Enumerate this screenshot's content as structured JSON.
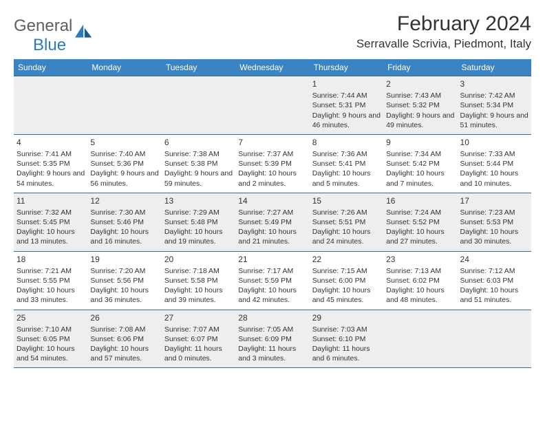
{
  "logo": {
    "word1": "General",
    "word2": "Blue"
  },
  "title": "February 2024",
  "location": "Serravalle Scrivia, Piedmont, Italy",
  "colors": {
    "header_bg": "#3b84c4",
    "border": "#2f6aa0",
    "shade": "#eeeeee",
    "text": "#333333",
    "logo_gray": "#5f5f5f",
    "logo_blue": "#2b7bbf"
  },
  "daysOfWeek": [
    "Sunday",
    "Monday",
    "Tuesday",
    "Wednesday",
    "Thursday",
    "Friday",
    "Saturday"
  ],
  "weeks": [
    [
      {
        "blank": true
      },
      {
        "blank": true
      },
      {
        "blank": true
      },
      {
        "blank": true
      },
      {
        "num": "1",
        "sunrise": "Sunrise: 7:44 AM",
        "sunset": "Sunset: 5:31 PM",
        "daylight": "Daylight: 9 hours and 46 minutes."
      },
      {
        "num": "2",
        "sunrise": "Sunrise: 7:43 AM",
        "sunset": "Sunset: 5:32 PM",
        "daylight": "Daylight: 9 hours and 49 minutes."
      },
      {
        "num": "3",
        "sunrise": "Sunrise: 7:42 AM",
        "sunset": "Sunset: 5:34 PM",
        "daylight": "Daylight: 9 hours and 51 minutes."
      }
    ],
    [
      {
        "num": "4",
        "sunrise": "Sunrise: 7:41 AM",
        "sunset": "Sunset: 5:35 PM",
        "daylight": "Daylight: 9 hours and 54 minutes."
      },
      {
        "num": "5",
        "sunrise": "Sunrise: 7:40 AM",
        "sunset": "Sunset: 5:36 PM",
        "daylight": "Daylight: 9 hours and 56 minutes."
      },
      {
        "num": "6",
        "sunrise": "Sunrise: 7:38 AM",
        "sunset": "Sunset: 5:38 PM",
        "daylight": "Daylight: 9 hours and 59 minutes."
      },
      {
        "num": "7",
        "sunrise": "Sunrise: 7:37 AM",
        "sunset": "Sunset: 5:39 PM",
        "daylight": "Daylight: 10 hours and 2 minutes."
      },
      {
        "num": "8",
        "sunrise": "Sunrise: 7:36 AM",
        "sunset": "Sunset: 5:41 PM",
        "daylight": "Daylight: 10 hours and 5 minutes."
      },
      {
        "num": "9",
        "sunrise": "Sunrise: 7:34 AM",
        "sunset": "Sunset: 5:42 PM",
        "daylight": "Daylight: 10 hours and 7 minutes."
      },
      {
        "num": "10",
        "sunrise": "Sunrise: 7:33 AM",
        "sunset": "Sunset: 5:44 PM",
        "daylight": "Daylight: 10 hours and 10 minutes."
      }
    ],
    [
      {
        "num": "11",
        "sunrise": "Sunrise: 7:32 AM",
        "sunset": "Sunset: 5:45 PM",
        "daylight": "Daylight: 10 hours and 13 minutes."
      },
      {
        "num": "12",
        "sunrise": "Sunrise: 7:30 AM",
        "sunset": "Sunset: 5:46 PM",
        "daylight": "Daylight: 10 hours and 16 minutes."
      },
      {
        "num": "13",
        "sunrise": "Sunrise: 7:29 AM",
        "sunset": "Sunset: 5:48 PM",
        "daylight": "Daylight: 10 hours and 19 minutes."
      },
      {
        "num": "14",
        "sunrise": "Sunrise: 7:27 AM",
        "sunset": "Sunset: 5:49 PM",
        "daylight": "Daylight: 10 hours and 21 minutes."
      },
      {
        "num": "15",
        "sunrise": "Sunrise: 7:26 AM",
        "sunset": "Sunset: 5:51 PM",
        "daylight": "Daylight: 10 hours and 24 minutes."
      },
      {
        "num": "16",
        "sunrise": "Sunrise: 7:24 AM",
        "sunset": "Sunset: 5:52 PM",
        "daylight": "Daylight: 10 hours and 27 minutes."
      },
      {
        "num": "17",
        "sunrise": "Sunrise: 7:23 AM",
        "sunset": "Sunset: 5:53 PM",
        "daylight": "Daylight: 10 hours and 30 minutes."
      }
    ],
    [
      {
        "num": "18",
        "sunrise": "Sunrise: 7:21 AM",
        "sunset": "Sunset: 5:55 PM",
        "daylight": "Daylight: 10 hours and 33 minutes."
      },
      {
        "num": "19",
        "sunrise": "Sunrise: 7:20 AM",
        "sunset": "Sunset: 5:56 PM",
        "daylight": "Daylight: 10 hours and 36 minutes."
      },
      {
        "num": "20",
        "sunrise": "Sunrise: 7:18 AM",
        "sunset": "Sunset: 5:58 PM",
        "daylight": "Daylight: 10 hours and 39 minutes."
      },
      {
        "num": "21",
        "sunrise": "Sunrise: 7:17 AM",
        "sunset": "Sunset: 5:59 PM",
        "daylight": "Daylight: 10 hours and 42 minutes."
      },
      {
        "num": "22",
        "sunrise": "Sunrise: 7:15 AM",
        "sunset": "Sunset: 6:00 PM",
        "daylight": "Daylight: 10 hours and 45 minutes."
      },
      {
        "num": "23",
        "sunrise": "Sunrise: 7:13 AM",
        "sunset": "Sunset: 6:02 PM",
        "daylight": "Daylight: 10 hours and 48 minutes."
      },
      {
        "num": "24",
        "sunrise": "Sunrise: 7:12 AM",
        "sunset": "Sunset: 6:03 PM",
        "daylight": "Daylight: 10 hours and 51 minutes."
      }
    ],
    [
      {
        "num": "25",
        "sunrise": "Sunrise: 7:10 AM",
        "sunset": "Sunset: 6:05 PM",
        "daylight": "Daylight: 10 hours and 54 minutes."
      },
      {
        "num": "26",
        "sunrise": "Sunrise: 7:08 AM",
        "sunset": "Sunset: 6:06 PM",
        "daylight": "Daylight: 10 hours and 57 minutes."
      },
      {
        "num": "27",
        "sunrise": "Sunrise: 7:07 AM",
        "sunset": "Sunset: 6:07 PM",
        "daylight": "Daylight: 11 hours and 0 minutes."
      },
      {
        "num": "28",
        "sunrise": "Sunrise: 7:05 AM",
        "sunset": "Sunset: 6:09 PM",
        "daylight": "Daylight: 11 hours and 3 minutes."
      },
      {
        "num": "29",
        "sunrise": "Sunrise: 7:03 AM",
        "sunset": "Sunset: 6:10 PM",
        "daylight": "Daylight: 11 hours and 6 minutes."
      },
      {
        "blank": true
      },
      {
        "blank": true
      }
    ]
  ]
}
